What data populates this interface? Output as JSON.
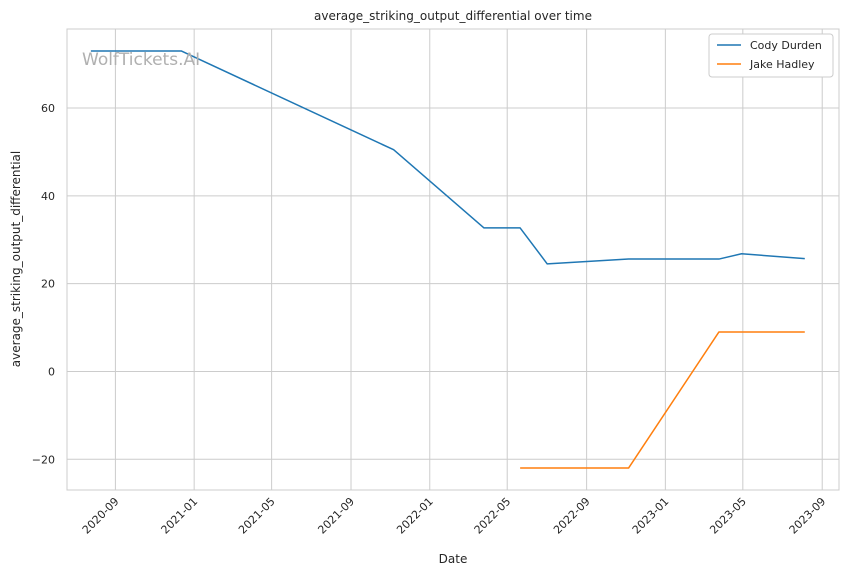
{
  "chart_data": {
    "type": "line",
    "title": "average_striking_output_differential over time",
    "xlabel": "Date",
    "ylabel": "average_striking_output_differential",
    "watermark": "WolfTickets.AI",
    "grid": true,
    "legend_position": "top-right",
    "x_ticks": [
      "2020-09",
      "2021-01",
      "2021-05",
      "2021-09",
      "2022-01",
      "2022-05",
      "2022-09",
      "2023-01",
      "2023-05",
      "2023-09"
    ],
    "y_ticks": [
      -20,
      0,
      20,
      40,
      60
    ],
    "xlim": [
      "2020-06-18",
      "2023-09-27"
    ],
    "ylim": [
      -27,
      78
    ],
    "series": [
      {
        "name": "Cody Durden",
        "color": "#1f77b4",
        "points": [
          {
            "x": "2020-07-25",
            "y": 73
          },
          {
            "x": "2020-12-12",
            "y": 73
          },
          {
            "x": "2021-11-06",
            "y": 50.5
          },
          {
            "x": "2022-03-26",
            "y": 32.7
          },
          {
            "x": "2022-05-21",
            "y": 32.7
          },
          {
            "x": "2022-07-02",
            "y": 24.5
          },
          {
            "x": "2022-11-05",
            "y": 25.6
          },
          {
            "x": "2023-03-25",
            "y": 25.6
          },
          {
            "x": "2023-04-29",
            "y": 26.8
          },
          {
            "x": "2023-08-05",
            "y": 25.7
          }
        ]
      },
      {
        "name": "Jake Hadley",
        "color": "#ff7f0e",
        "points": [
          {
            "x": "2022-05-21",
            "y": -22
          },
          {
            "x": "2022-11-05",
            "y": -22
          },
          {
            "x": "2023-03-25",
            "y": 9
          },
          {
            "x": "2023-08-05",
            "y": 9
          }
        ]
      }
    ]
  }
}
